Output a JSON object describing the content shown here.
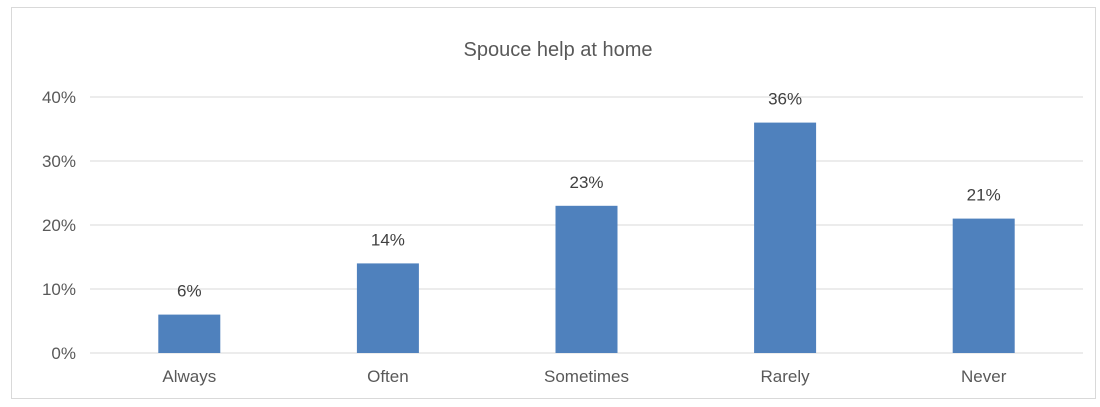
{
  "chart_data": {
    "type": "bar",
    "title": "Spouce help at home",
    "xlabel": "",
    "ylabel": "",
    "categories": [
      "Always",
      "Often",
      "Sometimes",
      "Rarely",
      "Never"
    ],
    "values": [
      6,
      14,
      23,
      36,
      21
    ],
    "data_labels": [
      "6%",
      "14%",
      "23%",
      "36%",
      "21%"
    ],
    "ylim": [
      0,
      40
    ],
    "yticks": [
      0,
      10,
      20,
      30,
      40
    ],
    "ytick_labels": [
      "0%",
      "10%",
      "20%",
      "30%",
      "40%"
    ],
    "grid": true,
    "legend": "none",
    "bar_color": "#4f81bd",
    "grid_color": "#d9d9d9"
  }
}
